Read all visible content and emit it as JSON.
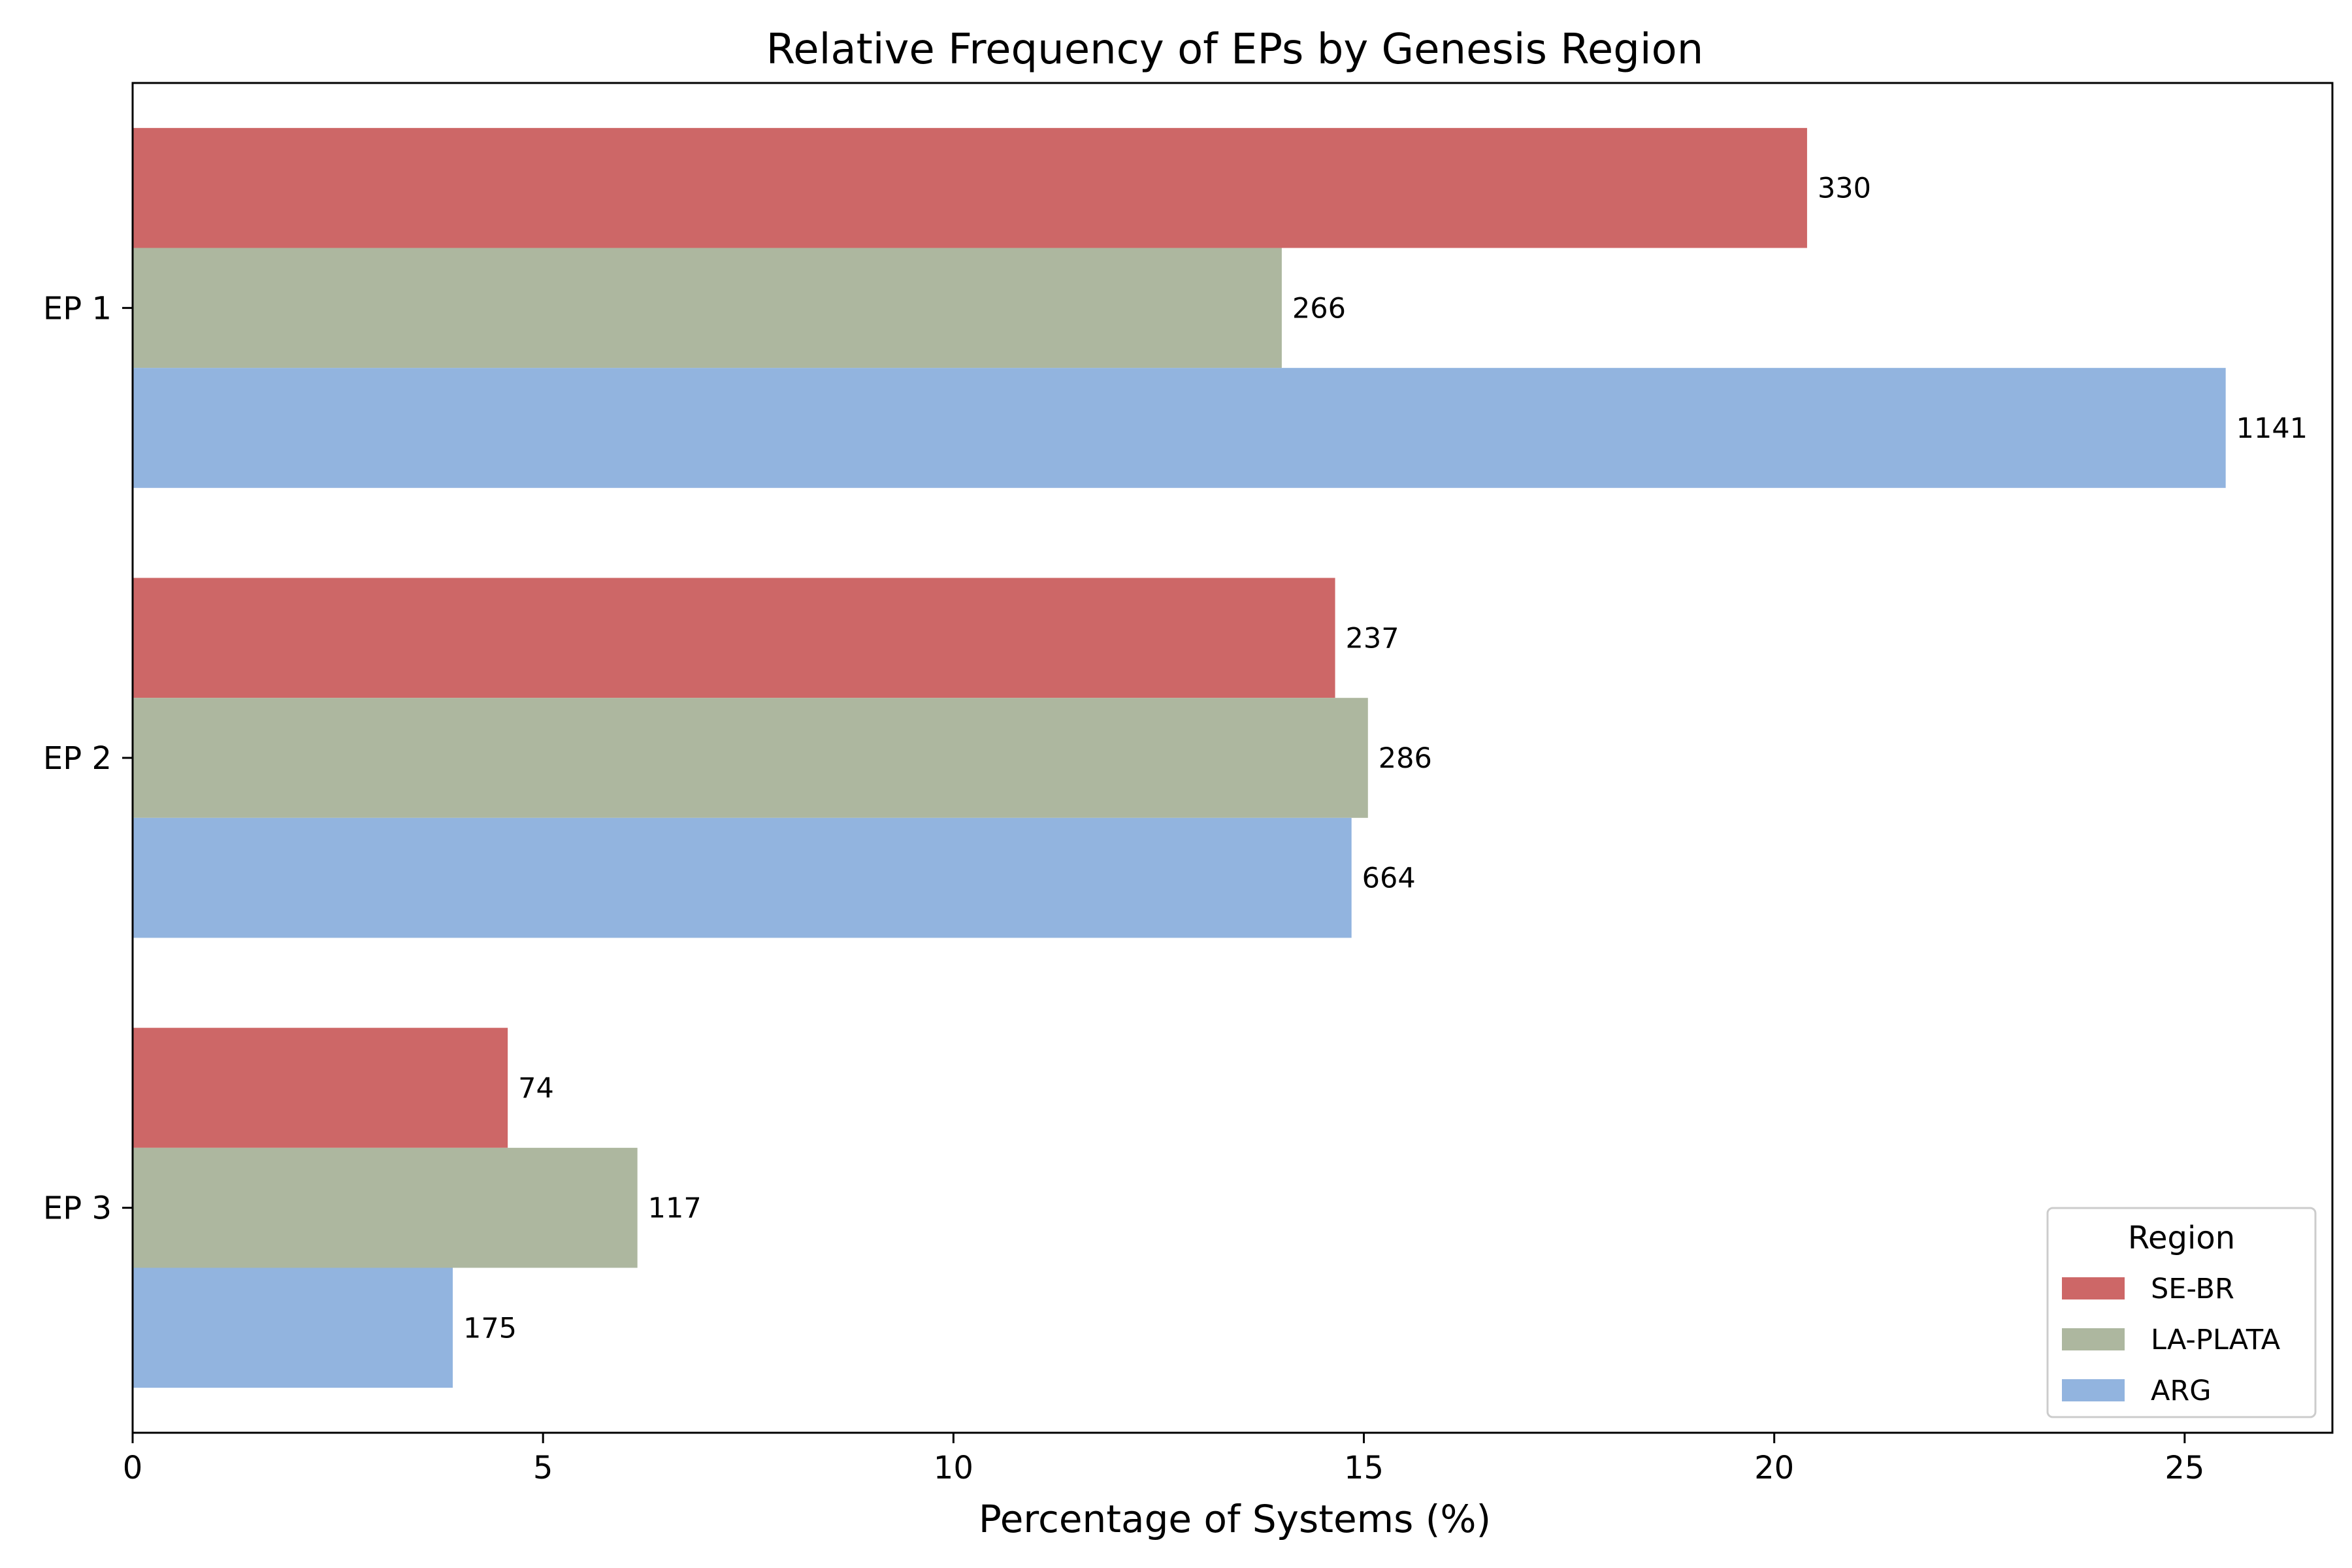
{
  "chart_data": {
    "type": "bar",
    "orientation": "horizontal",
    "title": "Relative Frequency of EPs by Genesis Region",
    "xlabel": "Percentage of Systems (%)",
    "ylabel": "",
    "xlim": [
      0,
      26.8
    ],
    "xticks": [
      0,
      5,
      10,
      15,
      20,
      25
    ],
    "categories": [
      "EP 1",
      "EP 2",
      "EP 3"
    ],
    "series": [
      {
        "name": "SE-BR",
        "color": "#cd6767",
        "values": [
          20.4,
          14.65,
          4.57
        ],
        "counts": [
          "330",
          "237",
          "74"
        ]
      },
      {
        "name": "LA-PLATA",
        "color": "#adb79f",
        "values": [
          14.0,
          15.05,
          6.15
        ],
        "counts": [
          "266",
          "286",
          "117"
        ]
      },
      {
        "name": "ARG",
        "color": "#92b4df",
        "values": [
          25.5,
          14.85,
          3.9
        ],
        "counts": [
          "1141",
          "664",
          "175"
        ]
      }
    ],
    "legend": {
      "title": "Region",
      "placement": "lower-right"
    },
    "grid": false
  }
}
